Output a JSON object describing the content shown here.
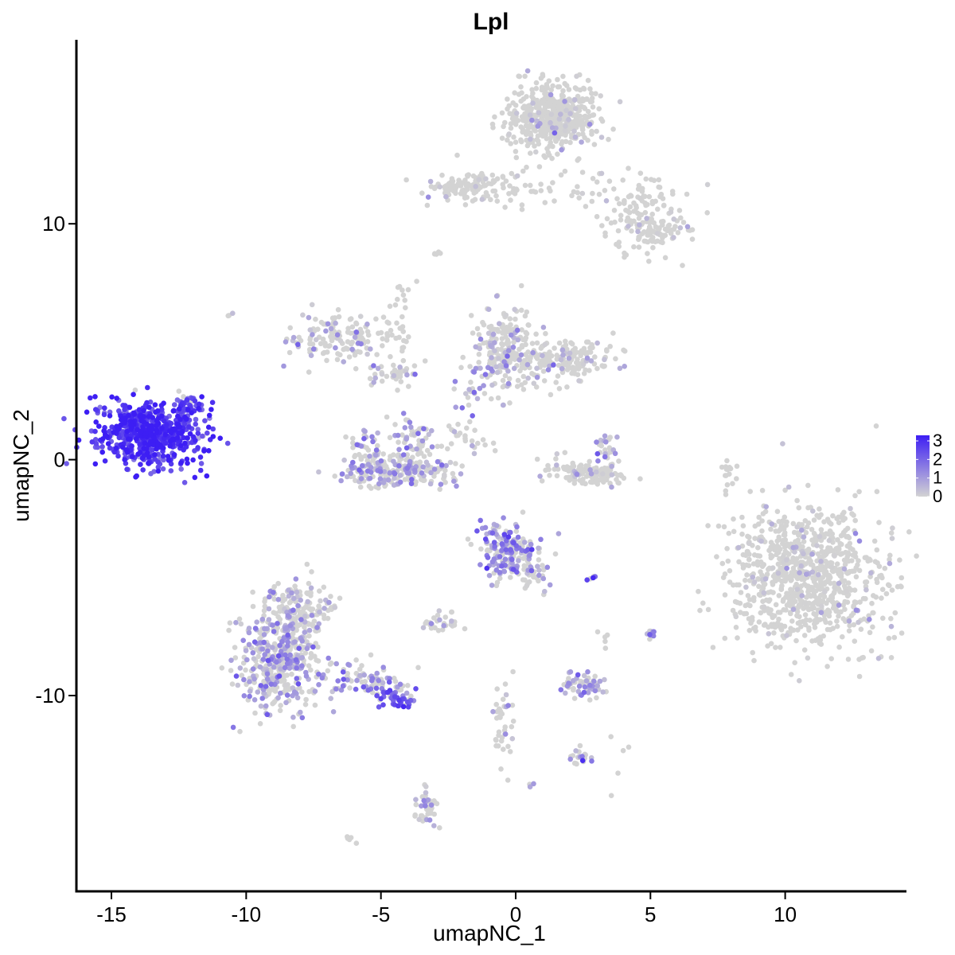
{
  "chart_data": {
    "type": "scatter",
    "title": "Lpl",
    "xlabel": "umapNC_1",
    "ylabel": "umapNC_2",
    "xlim": [
      -16.3,
      14.5
    ],
    "ylim": [
      -18.3,
      17.8
    ],
    "x_ticks": [
      {
        "value": -15,
        "label": "-15"
      },
      {
        "value": -10,
        "label": "-10"
      },
      {
        "value": -5,
        "label": "-5"
      },
      {
        "value": 0,
        "label": "0"
      },
      {
        "value": 5,
        "label": "5"
      },
      {
        "value": 10,
        "label": "10"
      }
    ],
    "y_ticks": [
      {
        "value": 10,
        "label": "10"
      },
      {
        "value": 0,
        "label": "0"
      },
      {
        "value": -10,
        "label": "-10"
      }
    ],
    "grid": false,
    "legend": {
      "placement": "right",
      "type": "colorbar",
      "min": 0,
      "max": 3.3,
      "low_color": "#d3d3d3",
      "high_color": "#3d1ef4",
      "ticks": [
        {
          "value": 3,
          "label": "3"
        },
        {
          "value": 2,
          "label": "2"
        },
        {
          "value": 1,
          "label": "1"
        },
        {
          "value": 0,
          "label": "0"
        }
      ]
    },
    "point_color_low": "#d3d3d3",
    "point_color_high": "#3d1ef4",
    "clusters": [
      {
        "cx": -13.6,
        "cy": 1.1,
        "sx": 0.95,
        "sy": 0.7,
        "n": 650,
        "expr": 2.8
      },
      {
        "cx": -12.2,
        "cy": 2.2,
        "sx": 0.35,
        "sy": 0.35,
        "n": 45,
        "expr": 2.3
      },
      {
        "cx": 1.4,
        "cy": 14.5,
        "sx": 0.85,
        "sy": 0.7,
        "n": 520,
        "expr": 0.02
      },
      {
        "cx": -1.8,
        "cy": 11.6,
        "sx": 0.75,
        "sy": 0.3,
        "n": 110,
        "expr": 0.02
      },
      {
        "cx": 1.0,
        "cy": 11.3,
        "sx": 1.6,
        "sy": 0.45,
        "n": 55,
        "expr": 0.03
      },
      {
        "cx": 4.6,
        "cy": 10.4,
        "sx": 0.7,
        "sy": 0.85,
        "n": 130,
        "expr": 0.02
      },
      {
        "cx": 5.5,
        "cy": 9.6,
        "sx": 0.5,
        "sy": 0.35,
        "n": 50,
        "expr": 0.02
      },
      {
        "cx": 10.7,
        "cy": -5.0,
        "sx": 1.4,
        "sy": 1.5,
        "n": 900,
        "expr": 0.01
      },
      {
        "cx": 7.9,
        "cy": -0.5,
        "sx": 0.12,
        "sy": 0.45,
        "n": 16,
        "expr": 0.0
      },
      {
        "cx": -6.5,
        "cy": 5.2,
        "sx": 0.9,
        "sy": 0.6,
        "n": 140,
        "expr": 0.45
      },
      {
        "cx": -4.6,
        "cy": 3.7,
        "sx": 0.5,
        "sy": 0.35,
        "n": 40,
        "expr": 0.5
      },
      {
        "cx": -4.4,
        "cy": -0.5,
        "sx": 1.0,
        "sy": 0.35,
        "n": 230,
        "expr": 0.75
      },
      {
        "cx": -3.8,
        "cy": 0.8,
        "sx": 0.4,
        "sy": 0.55,
        "n": 60,
        "expr": 0.9
      },
      {
        "cx": -5.6,
        "cy": 0.4,
        "sx": 0.35,
        "sy": 0.5,
        "n": 40,
        "expr": 0.8
      },
      {
        "cx": -4.3,
        "cy": 6.2,
        "sx": 0.25,
        "sy": 1.0,
        "n": 25,
        "expr": 0.02
      },
      {
        "cx": -0.4,
        "cy": 4.7,
        "sx": 0.6,
        "sy": 0.9,
        "n": 220,
        "expr": 0.55
      },
      {
        "cx": 1.8,
        "cy": 4.2,
        "sx": 0.9,
        "sy": 0.4,
        "n": 170,
        "expr": 0.25
      },
      {
        "cx": -1.7,
        "cy": 2.5,
        "sx": 0.3,
        "sy": 0.8,
        "n": 30,
        "expr": 0.9
      },
      {
        "cx": -2.1,
        "cy": 1.2,
        "sx": 0.35,
        "sy": 0.3,
        "n": 10,
        "expr": 0.5
      },
      {
        "cx": -1.5,
        "cy": 0.6,
        "sx": 0.35,
        "sy": 0.3,
        "n": 10,
        "expr": 0.6
      },
      {
        "cx": 2.8,
        "cy": -0.7,
        "sx": 0.55,
        "sy": 0.2,
        "n": 90,
        "expr": 0.12
      },
      {
        "cx": 1.8,
        "cy": -0.4,
        "sx": 0.5,
        "sy": 0.3,
        "n": 35,
        "expr": 0.15
      },
      {
        "cx": 3.4,
        "cy": 0.2,
        "sx": 0.25,
        "sy": 0.45,
        "n": 30,
        "expr": 0.9
      },
      {
        "cx": -0.3,
        "cy": -3.9,
        "sx": 0.5,
        "sy": 0.6,
        "n": 190,
        "expr": 1.3
      },
      {
        "cx": 0.7,
        "cy": -4.8,
        "sx": 0.4,
        "sy": 0.4,
        "n": 35,
        "expr": 0.75
      },
      {
        "cx": -8.8,
        "cy": -8.4,
        "sx": 0.75,
        "sy": 1.1,
        "n": 450,
        "expr": 0.9
      },
      {
        "cx": -8.0,
        "cy": -6.3,
        "sx": 0.6,
        "sy": 0.7,
        "n": 130,
        "expr": 0.3
      },
      {
        "cx": -5.6,
        "cy": -9.3,
        "sx": 0.8,
        "sy": 0.35,
        "n": 75,
        "expr": 1.2
      },
      {
        "cx": -4.4,
        "cy": -10.1,
        "sx": 0.45,
        "sy": 0.25,
        "n": 45,
        "expr": 2.0
      },
      {
        "cx": -3.3,
        "cy": -14.7,
        "sx": 0.2,
        "sy": 0.45,
        "n": 40,
        "expr": 0.6
      },
      {
        "cx": -2.8,
        "cy": -6.9,
        "sx": 0.3,
        "sy": 0.2,
        "n": 30,
        "expr": 0.1
      },
      {
        "cx": 2.4,
        "cy": -9.6,
        "sx": 0.45,
        "sy": 0.25,
        "n": 65,
        "expr": 1.0
      },
      {
        "cx": 2.4,
        "cy": -12.6,
        "sx": 0.2,
        "sy": 0.15,
        "n": 22,
        "expr": 1.4
      },
      {
        "cx": -0.5,
        "cy": -11.0,
        "sx": 0.2,
        "sy": 1.0,
        "n": 40,
        "expr": 0.25
      },
      {
        "cx": 5.0,
        "cy": -7.4,
        "sx": 0.15,
        "sy": 0.15,
        "n": 12,
        "expr": 1.6
      },
      {
        "cx": 2.8,
        "cy": -5.0,
        "sx": 0.08,
        "sy": 0.07,
        "n": 6,
        "expr": 2.3
      },
      {
        "cx": 3.4,
        "cy": -7.5,
        "sx": 0.2,
        "sy": 0.15,
        "n": 5,
        "expr": 0.0
      },
      {
        "cx": -6.1,
        "cy": -16.1,
        "sx": 0.1,
        "sy": 0.08,
        "n": 5,
        "expr": 0.0
      },
      {
        "cx": 0.6,
        "cy": -13.8,
        "sx": 0.05,
        "sy": 0.05,
        "n": 3,
        "expr": 1.2
      },
      {
        "cx": -10.6,
        "cy": 6.1,
        "sx": 0.06,
        "sy": 0.06,
        "n": 3,
        "expr": 0.6
      },
      {
        "cx": -2.9,
        "cy": 8.8,
        "sx": 0.1,
        "sy": 0.15,
        "n": 5,
        "expr": 0.1
      },
      {
        "cx": 3.8,
        "cy": -12.8,
        "sx": 0.7,
        "sy": 0.6,
        "n": 6,
        "expr": 0.2
      }
    ]
  }
}
